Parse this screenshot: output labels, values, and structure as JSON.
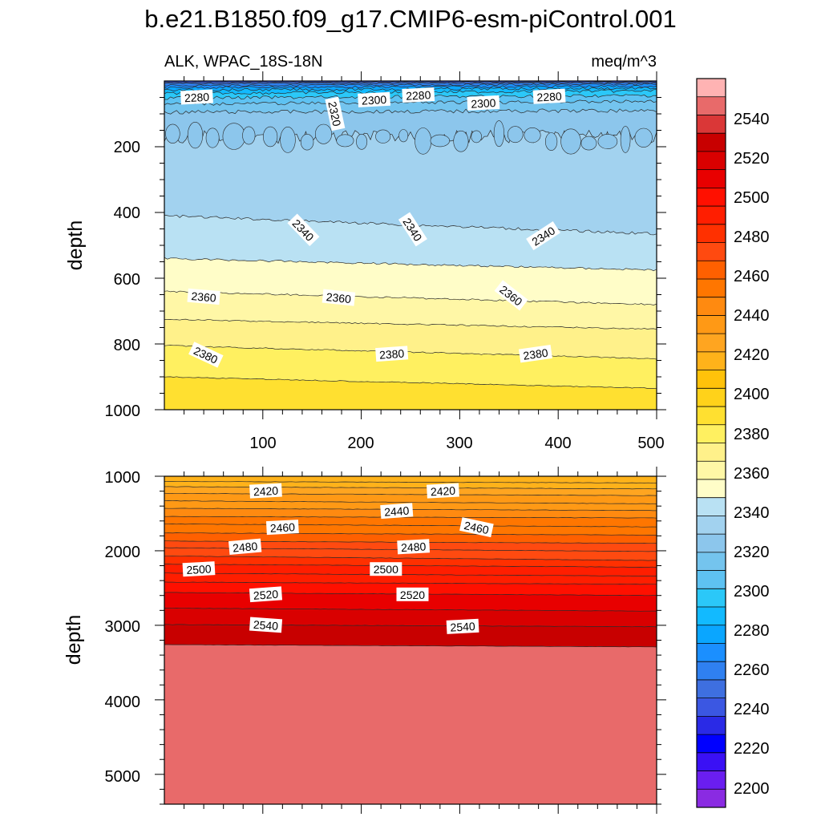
{
  "title": "b.e21.B1850.f09_g17.CMIP6-esm-piControl.001",
  "panel_top": {
    "left_string": "ALK, WPAC_18S-18N",
    "right_string": "meq/m^3",
    "ylabel": "depth",
    "x_ticks": [
      "100",
      "200",
      "300",
      "400",
      "500"
    ],
    "y_ticks": [
      "200",
      "400",
      "600",
      "800",
      "1000"
    ]
  },
  "panel_bottom": {
    "ylabel": "depth",
    "y_ticks": [
      "1000",
      "2000",
      "3000",
      "4000",
      "5000"
    ]
  },
  "colorbar": {
    "labels": [
      "2540",
      "2520",
      "2500",
      "2480",
      "2460",
      "2440",
      "2420",
      "2400",
      "2380",
      "2360",
      "2340",
      "2320",
      "2300",
      "2280",
      "2260",
      "2240",
      "2220",
      "2200"
    ],
    "colors_bottom_to_top": [
      "#8a2be2",
      "#6a1ef0",
      "#3a10f5",
      "#0000ff",
      "#2a2ae6",
      "#3b57e2",
      "#3e6fe0",
      "#2f80f0",
      "#1b8fff",
      "#0aa6ff",
      "#12baff",
      "#2bc8f8",
      "#5ec2f2",
      "#74c4ee",
      "#8cc6ec",
      "#a2d2ef",
      "#b9e1f3",
      "#fffdc8",
      "#fff7a6",
      "#fff18a",
      "#fff060",
      "#ffe030",
      "#ffd21a",
      "#ffc20a",
      "#ffb21a",
      "#ffa520",
      "#ff9915",
      "#ff8a10",
      "#ff7600",
      "#ff6000",
      "#ff4a10",
      "#ff3000",
      "#ff1e00",
      "#ff1000",
      "#e80000",
      "#d90000",
      "#c80000",
      "#da3737",
      "#e86a6a",
      "#ffb3b3"
    ]
  },
  "chart_data": [
    {
      "type": "contour",
      "title": "ALK, WPAC_18S-18N",
      "units": "meq/m^3",
      "xlabel": "",
      "ylabel": "depth",
      "xlim": [
        0,
        500
      ],
      "ylim": [
        1000,
        0
      ],
      "contour_labels": [
        {
          "value": 2280,
          "x": 33,
          "y": 50,
          "angle": -3
        },
        {
          "value": 2320,
          "x": 173,
          "y": 100,
          "angle": 78
        },
        {
          "value": 2300,
          "x": 213,
          "y": 58,
          "angle": -3
        },
        {
          "value": 2280,
          "x": 258,
          "y": 44,
          "angle": -3
        },
        {
          "value": 2300,
          "x": 324,
          "y": 68,
          "angle": -3
        },
        {
          "value": 2280,
          "x": 391,
          "y": 48,
          "angle": -3
        },
        {
          "value": 2340,
          "x": 141,
          "y": 454,
          "angle": 46
        },
        {
          "value": 2340,
          "x": 252,
          "y": 452,
          "angle": 57
        },
        {
          "value": 2340,
          "x": 385,
          "y": 472,
          "angle": -33
        },
        {
          "value": 2360,
          "x": 40,
          "y": 657,
          "angle": 5
        },
        {
          "value": 2360,
          "x": 177,
          "y": 660,
          "angle": 6
        },
        {
          "value": 2360,
          "x": 352,
          "y": 653,
          "angle": 38
        },
        {
          "value": 2380,
          "x": 42,
          "y": 834,
          "angle": 25
        },
        {
          "value": 2380,
          "x": 231,
          "y": 831,
          "angle": -4
        },
        {
          "value": 2380,
          "x": 377,
          "y": 831,
          "angle": -8
        }
      ]
    },
    {
      "type": "contour",
      "xlabel": "",
      "ylabel": "depth",
      "xlim": [
        0,
        500
      ],
      "ylim": [
        5400,
        1000
      ],
      "contour_labels": [
        {
          "value": 2420,
          "x": 103,
          "y": 1200,
          "angle": -3
        },
        {
          "value": 2420,
          "x": 283,
          "y": 1200,
          "angle": -3
        },
        {
          "value": 2440,
          "x": 236,
          "y": 1470,
          "angle": -4
        },
        {
          "value": 2460,
          "x": 120,
          "y": 1690,
          "angle": -3
        },
        {
          "value": 2460,
          "x": 317,
          "y": 1690,
          "angle": 12
        },
        {
          "value": 2480,
          "x": 82,
          "y": 1950,
          "angle": -5
        },
        {
          "value": 2480,
          "x": 253,
          "y": 1950,
          "angle": -3
        },
        {
          "value": 2500,
          "x": 35,
          "y": 2250,
          "angle": -3
        },
        {
          "value": 2500,
          "x": 225,
          "y": 2250,
          "angle": 0
        },
        {
          "value": 2520,
          "x": 103,
          "y": 2590,
          "angle": -4
        },
        {
          "value": 2520,
          "x": 252,
          "y": 2590,
          "angle": 0
        },
        {
          "value": 2540,
          "x": 103,
          "y": 3000,
          "angle": 4
        },
        {
          "value": 2540,
          "x": 303,
          "y": 3020,
          "angle": -3
        }
      ]
    }
  ]
}
